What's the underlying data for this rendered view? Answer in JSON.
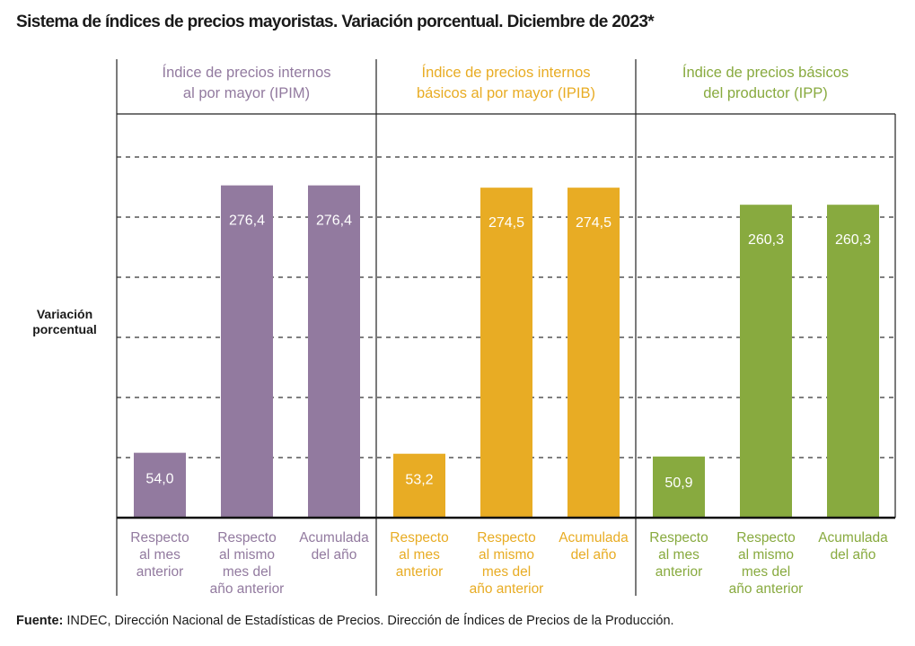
{
  "title": "Sistema de índices de precios mayoristas. Variación porcentual. Diciembre de 2023*",
  "ylabel": [
    "Variación",
    "porcentual"
  ],
  "source_label": "Fuente:",
  "source_text": "INDEC, Dirección Nacional de Estadísticas de Precios. Dirección de Índices de Precios de la Producción.",
  "chart_data": {
    "type": "bar",
    "title": "Sistema de índices de precios mayoristas. Variación porcentual. Diciembre de 2023*",
    "ylabel": "Variación porcentual",
    "xlabel": "",
    "ylim": [
      0,
      300
    ],
    "grid": true,
    "categories": [
      [
        "Respecto",
        "al mes",
        "anterior"
      ],
      [
        "Respecto",
        "al mismo",
        "mes del",
        "año anterior"
      ],
      [
        "Acumulada",
        "del año"
      ]
    ],
    "series": [
      {
        "name": "Índice de precios internos al por mayor (IPIM)",
        "title_lines": [
          "Índice de precios internos",
          "al por mayor (IPIM)"
        ],
        "color": "#927a9f",
        "values": [
          54.0,
          276.4,
          276.4
        ],
        "labels": [
          "54,0",
          "276,4",
          "276,4"
        ]
      },
      {
        "name": "Índice de precios internos básicos al por mayor (IPIB)",
        "title_lines": [
          "Índice de precios internos",
          "básicos al por mayor (IPIB)"
        ],
        "color": "#e8ac24",
        "values": [
          53.2,
          274.5,
          274.5
        ],
        "labels": [
          "53,2",
          "274,5",
          "274,5"
        ]
      },
      {
        "name": "Índice de precios básicos del productor (IPP)",
        "title_lines": [
          "Índice de precios básicos",
          "del productor (IPP)"
        ],
        "color": "#88aa3f",
        "values": [
          50.9,
          260.3,
          260.3
        ],
        "labels": [
          "50,9",
          "260,3",
          "260,3"
        ]
      }
    ]
  }
}
